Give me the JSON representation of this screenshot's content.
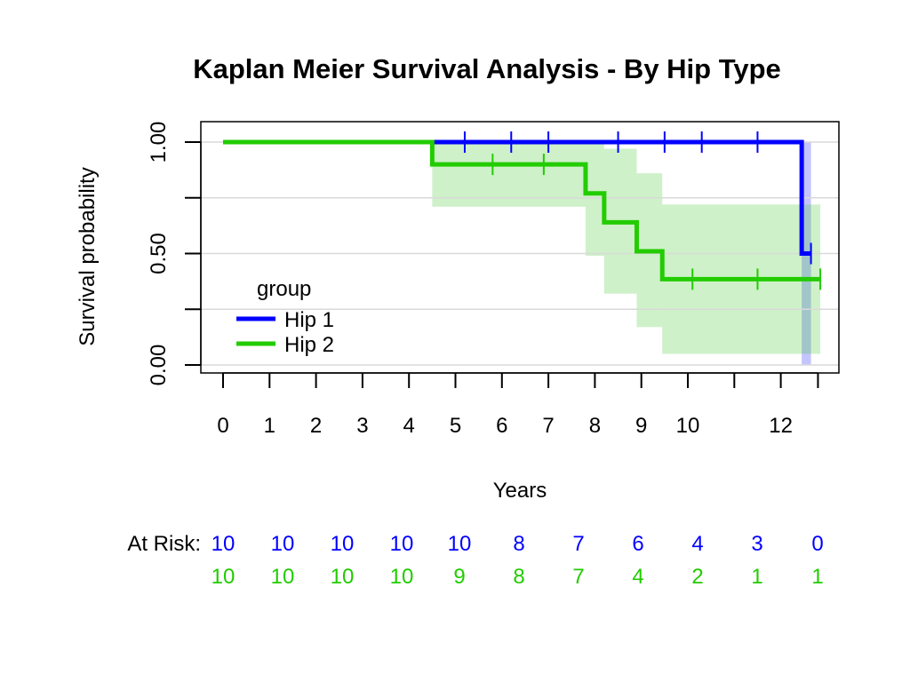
{
  "chart_data": {
    "type": "line",
    "title": "Kaplan Meier Survival Analysis - By Hip Type",
    "xlabel": "Years",
    "ylabel": "Survival probability",
    "xlim": [
      0,
      12.8
    ],
    "ylim": [
      0,
      1
    ],
    "x_ticks": [
      0,
      1,
      2,
      3,
      4,
      5,
      6,
      7,
      8,
      9,
      10,
      11,
      12,
      12.8
    ],
    "x_tick_labels": [
      "0",
      "1",
      "2",
      "3",
      "4",
      "5",
      "6",
      "7",
      "8",
      "9",
      "10",
      "12"
    ],
    "x_tick_label_positions": [
      0,
      1,
      2,
      3,
      4,
      5,
      6,
      7,
      8,
      9,
      10,
      12
    ],
    "y_ticks": [
      0,
      0.25,
      0.5,
      0.75,
      1
    ],
    "y_tick_labels": [
      "0.00",
      "0.50",
      "1.00"
    ],
    "y_tick_label_positions": [
      0,
      0.5,
      1
    ],
    "grid": true,
    "legend": {
      "title": "group",
      "placement": "bottom-left",
      "entries": [
        "Hip 1",
        "Hip 2"
      ]
    },
    "series": [
      {
        "name": "Hip 1",
        "color": "#0000ff",
        "steps": [
          [
            0,
            1.0
          ],
          [
            12.45,
            0.5
          ],
          [
            12.65,
            0.5
          ]
        ],
        "censor_times": [
          5.2,
          6.2,
          7.0,
          8.5,
          9.5,
          10.3,
          11.5,
          12.65
        ],
        "ci": [
          [
            12.45,
            0.0,
            12.65,
            1.0
          ]
        ]
      },
      {
        "name": "Hip 2",
        "color": "#22cc00",
        "steps": [
          [
            0,
            1.0
          ],
          [
            4.5,
            0.9
          ],
          [
            7.8,
            0.77
          ],
          [
            8.2,
            0.64
          ],
          [
            8.9,
            0.51
          ],
          [
            9.45,
            0.385
          ],
          [
            12.85,
            0.385
          ]
        ],
        "censor_times": [
          5.8,
          6.9,
          10.1,
          11.5,
          12.85
        ],
        "ci": [
          [
            4.5,
            0.71,
            7.8,
            1.0
          ],
          [
            7.8,
            0.49,
            8.2,
            1.0
          ],
          [
            8.2,
            0.32,
            8.9,
            0.97
          ],
          [
            8.9,
            0.17,
            9.45,
            0.86
          ],
          [
            9.45,
            0.05,
            12.85,
            0.72
          ]
        ]
      }
    ],
    "at_risk": {
      "label": "At Risk:",
      "rows": [
        {
          "color": "#0000ff",
          "values": [
            "10",
            "10",
            "10",
            "10",
            "10",
            "8",
            "7",
            "6",
            "4",
            "3",
            "0"
          ]
        },
        {
          "color": "#22cc00",
          "values": [
            "10",
            "10",
            "10",
            "10",
            "9",
            "8",
            "7",
            "4",
            "2",
            "1",
            "1"
          ]
        }
      ]
    }
  }
}
